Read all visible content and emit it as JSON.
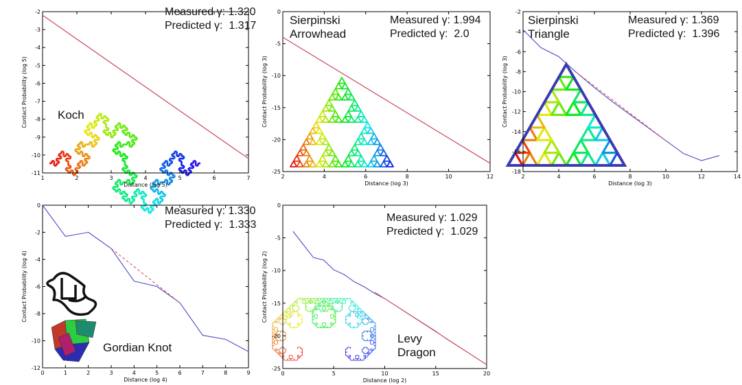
{
  "chart_data": [
    {
      "id": "koch",
      "type": "line",
      "name_label": "Koch",
      "measured_label": "Measured γ: 1.320",
      "predicted_label": "Predicted γ:  1.317",
      "xlabel": "Distance (log 5)",
      "ylabel": "Contact Probability (log 5)",
      "xlim": [
        1,
        7
      ],
      "ylim": [
        -11,
        -2
      ],
      "xticks": [
        1,
        2,
        3,
        4,
        5,
        6,
        7
      ],
      "yticks": [
        -11,
        -10,
        -9,
        -8,
        -7,
        -6,
        -5,
        -4,
        -3,
        -2
      ],
      "series": [
        {
          "name": "measured",
          "color": "#4b4bc8",
          "x": [
            1,
            7
          ],
          "y": [
            -2.2,
            -10.2
          ]
        },
        {
          "name": "predicted",
          "color": "#e05050",
          "dashed": false,
          "x": [
            1,
            7
          ],
          "y": [
            -2.2,
            -10.2
          ]
        }
      ],
      "inset": "koch-curve"
    },
    {
      "id": "arrowhead",
      "type": "line",
      "name_label": "Sierpinski\nArrowhead",
      "measured_label": "Measured γ: 1.994",
      "predicted_label": "Predicted γ:  2.0",
      "xlabel": "Distance (log 3)",
      "ylabel": "Contact Probability (log 3)",
      "xlim": [
        2,
        12
      ],
      "ylim": [
        -25,
        0
      ],
      "xticks": [
        2,
        4,
        6,
        8,
        10,
        12
      ],
      "yticks": [
        -25,
        -20,
        -15,
        -10,
        -5,
        0
      ],
      "series": [
        {
          "name": "measured",
          "color": "#4b4bc8",
          "x": [
            2,
            12
          ],
          "y": [
            -4,
            -23.7
          ]
        },
        {
          "name": "predicted",
          "color": "#e05050",
          "dashed": false,
          "x": [
            2,
            12
          ],
          "y": [
            -4,
            -23.7
          ]
        }
      ],
      "inset": "arrowhead-curve"
    },
    {
      "id": "triangle",
      "type": "line",
      "name_label": "Sierpinski\nTriangle",
      "measured_label": "Measured γ: 1.369",
      "predicted_label": "Predicted γ:  1.396",
      "xlabel": "Distance (log 3)",
      "ylabel": "Contact Probability (log 3)",
      "xlim": [
        2,
        14
      ],
      "ylim": [
        -18,
        -2
      ],
      "xticks": [
        2,
        4,
        6,
        8,
        10,
        12,
        14
      ],
      "yticks": [
        -18,
        -16,
        -14,
        -12,
        -10,
        -8,
        -6,
        -4,
        -2
      ],
      "series": [
        {
          "name": "measured",
          "color": "#4b4bc8",
          "x": [
            2,
            3,
            4,
            5,
            6,
            7,
            8,
            9,
            10,
            11,
            12,
            13
          ],
          "y": [
            -3.8,
            -5.6,
            -6.5,
            -8.1,
            -9.6,
            -11.0,
            -12.3,
            -13.6,
            -14.9,
            -16.2,
            -16.9,
            -16.4
          ]
        },
        {
          "name": "predicted",
          "color": "#e05050",
          "dashed": true,
          "x": [
            5,
            10
          ],
          "y": [
            -8.1,
            -14.9
          ]
        }
      ],
      "inset": "sierpinski-triangle"
    },
    {
      "id": "gordian",
      "type": "line",
      "name_label": "Gordian Knot",
      "measured_label": "Measured γ: 1.330",
      "predicted_label": "Predicted γ:  1.333",
      "xlabel": "Distance (log 4)",
      "ylabel": "Contact Probability (log 4)",
      "xlim": [
        0,
        9
      ],
      "ylim": [
        -12,
        0
      ],
      "xticks": [
        0,
        1,
        2,
        3,
        4,
        5,
        6,
        7,
        8,
        9
      ],
      "yticks": [
        -12,
        -10,
        -8,
        -6,
        -4,
        -2,
        0
      ],
      "series": [
        {
          "name": "measured",
          "color": "#4b4bc8",
          "x": [
            0,
            1,
            2,
            3,
            4,
            5,
            6,
            7,
            8,
            9
          ],
          "y": [
            0,
            -2.3,
            -2.0,
            -3.2,
            -5.6,
            -6.0,
            -7.2,
            -9.6,
            -9.9,
            -10.8
          ]
        },
        {
          "name": "predicted",
          "color": "#e05050",
          "dashed": true,
          "x": [
            3,
            6
          ],
          "y": [
            -3.2,
            -7.2
          ]
        }
      ],
      "inset": "gordian-knot"
    },
    {
      "id": "levy",
      "type": "line",
      "name_label": "Levy\nDragon",
      "measured_label": "Measured γ: 1.029",
      "predicted_label": "Predicted γ:  1.029",
      "xlabel": "Distance (log 2)",
      "ylabel": "Contact Probability (log 2)",
      "xlim": [
        0,
        20
      ],
      "ylim": [
        -25,
        0
      ],
      "xticks": [
        0,
        5,
        10,
        15,
        20
      ],
      "yticks": [
        -25,
        -20,
        -15,
        -10,
        -5,
        0
      ],
      "series": [
        {
          "name": "measured",
          "color": "#4b4bc8",
          "x": [
            1,
            2,
            3,
            4,
            5,
            6,
            7,
            8,
            9,
            10,
            11,
            12,
            13,
            14,
            15,
            16,
            17,
            18,
            19,
            20
          ],
          "y": [
            -4.0,
            -6.0,
            -8.0,
            -8.4,
            -9.9,
            -10.6,
            -11.7,
            -12.5,
            -13.5,
            -14.3,
            -15.3,
            -16.3,
            -17.3,
            -18.3,
            -19.3,
            -20.4,
            -21.4,
            -22.4,
            -23.4,
            -24.4
          ]
        },
        {
          "name": "predicted",
          "color": "#e05050",
          "dashed": false,
          "x": [
            9,
            20
          ],
          "y": [
            -13.3,
            -24.4
          ]
        }
      ],
      "inset": "levy-dragon"
    }
  ]
}
